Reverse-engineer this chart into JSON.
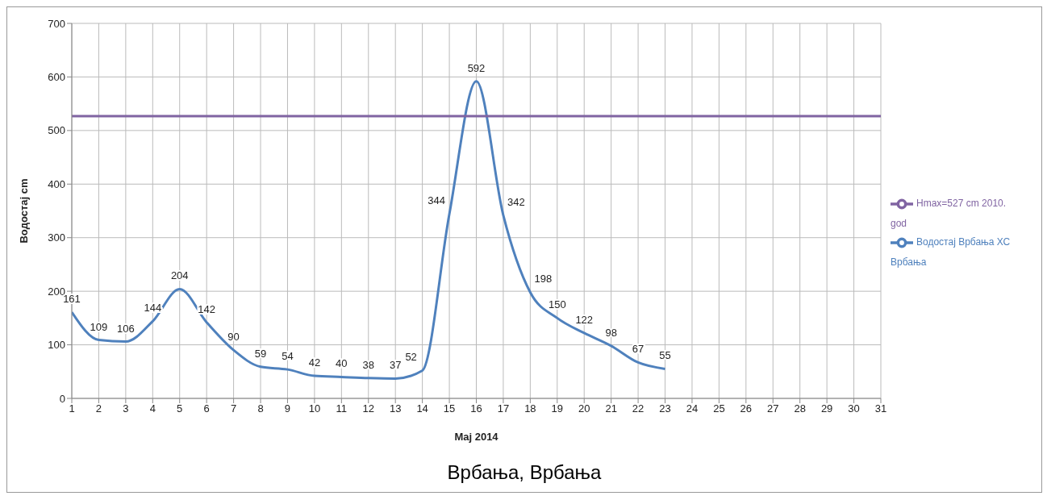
{
  "chart_data": {
    "type": "line",
    "xlabel": "Maj 2014",
    "ylabel": "Водостај cm",
    "annotations": [
      "Врбања, Врбања"
    ],
    "xlim": [
      1,
      31
    ],
    "xticks": [
      1,
      2,
      3,
      4,
      5,
      6,
      7,
      8,
      9,
      10,
      11,
      12,
      13,
      14,
      15,
      16,
      17,
      18,
      19,
      20,
      21,
      22,
      23,
      24,
      25,
      26,
      27,
      28,
      29,
      30,
      31
    ],
    "ylim": [
      0,
      700
    ],
    "yticks": [
      0,
      100,
      200,
      300,
      400,
      500,
      600,
      700
    ],
    "grid": true,
    "legend": "right",
    "marker": "none",
    "line_style": "solid",
    "series": [
      {
        "name": "Водостај Врбања ХС Врбања",
        "color": "#4f81bd",
        "x": [
          1,
          2,
          3,
          4,
          5,
          6,
          7,
          8,
          9,
          10,
          11,
          12,
          13,
          14,
          15,
          16,
          17,
          18,
          19,
          20,
          21,
          22,
          23
        ],
        "values": [
          161,
          109,
          106,
          144,
          204,
          142,
          90,
          59,
          54,
          42,
          40,
          38,
          37,
          52,
          344,
          592,
          342,
          198,
          150,
          122,
          98,
          67,
          55
        ],
        "value_labels": [
          "161",
          "109",
          "106",
          "144",
          "204",
          "142",
          "90",
          "59",
          "54",
          "42",
          "40",
          "38",
          "37",
          "52",
          "344",
          "592",
          "342",
          "198",
          "150",
          "122",
          "98",
          "67",
          "55"
        ]
      },
      {
        "name": "Hmax=527 cm 2010. god",
        "color": "#8064a2",
        "x": [
          1,
          31
        ],
        "values": [
          527,
          527
        ]
      }
    ]
  }
}
